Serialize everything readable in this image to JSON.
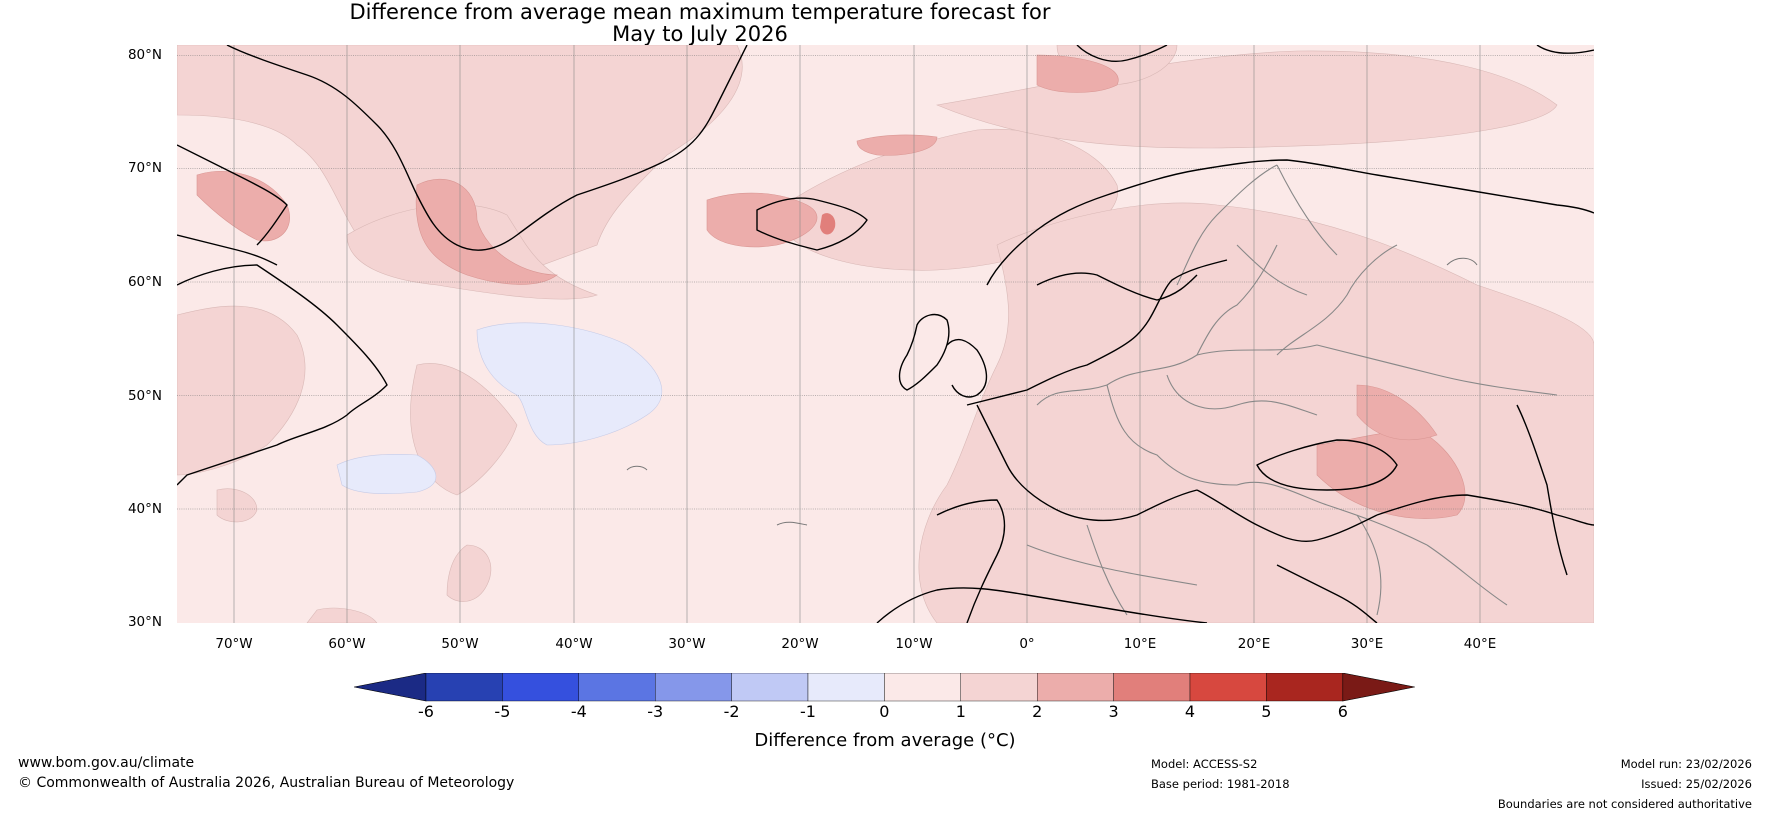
{
  "map": {
    "title_line1": "Difference from average mean maximum temperature forecast for",
    "title_line2": "May to July 2026",
    "lat_labels": [
      "80°N",
      "70°N",
      "60°N",
      "50°N",
      "40°N",
      "30°N"
    ],
    "lon_labels": [
      "70°W",
      "60°W",
      "50°W",
      "40°W",
      "30°W",
      "20°W",
      "10°W",
      "0°",
      "10°E",
      "20°E",
      "30°E",
      "40°E"
    ],
    "extent": {
      "lon_min": -75,
      "lon_max": 50,
      "lat_min": 30,
      "lat_max": 81
    },
    "colors": {
      "ocean_default": "#fbe9e8",
      "pos_0_1": "#fbe9e8",
      "pos_1_2": "#f4d4d3",
      "pos_2_3": "#ecadab",
      "pos_3_4": "#e17f7b",
      "neg_1_0": "#e7eafb",
      "coast": "#000000",
      "border": "#888888"
    }
  },
  "colorbar": {
    "tick_labels": [
      "-6",
      "-5",
      "-4",
      "-3",
      "-2",
      "-1",
      "0",
      "1",
      "2",
      "3",
      "4",
      "5",
      "6"
    ],
    "colors": [
      "#1b2a85",
      "#2741b2",
      "#3550de",
      "#5b75e3",
      "#8597ea",
      "#c0c9f5",
      "#e7eafb",
      "#fbe9e8",
      "#f4d4d3",
      "#ecadab",
      "#e17f7b",
      "#d7483f",
      "#a9261f",
      "#7a1a16"
    ],
    "label": "Difference from average (°C)"
  },
  "footer": {
    "website": "www.bom.gov.au/climate",
    "copyright": "© Commonwealth of Australia 2026, Australian Bureau of Meteorology",
    "model": "Model: ACCESS-S2",
    "base_period": "Base period: 1981-2018",
    "model_run": "Model run: 23/02/2026",
    "issued": "Issued: 25/02/2026",
    "disclaimer": "Boundaries are not considered authoritative"
  }
}
